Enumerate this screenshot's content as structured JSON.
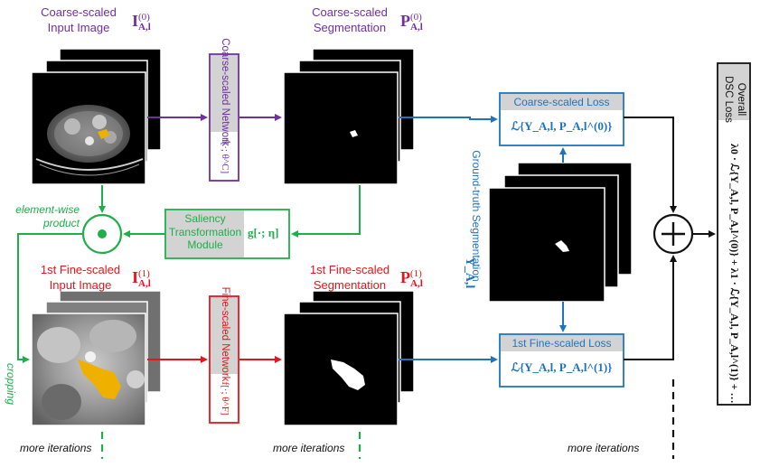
{
  "colors": {
    "coarse": "#7030a0",
    "saliency": "#1fae4a",
    "fine": "#e8141b",
    "loss": "#1f74c0",
    "output": "#111111",
    "label_bg": "#d3d3d3"
  },
  "coarse_image": {
    "label_line1": "Coarse-scaled",
    "label_line2": "Input Image",
    "symbol": "I",
    "sup": "(0)",
    "sub": "A,l"
  },
  "coarse_network": {
    "label": "Coarse-scaled Network",
    "func": "f[·; θ^C]"
  },
  "coarse_seg": {
    "label_line1": "Coarse-scaled",
    "label_line2": "Segmentation",
    "symbol": "P",
    "sup": "(0)",
    "sub": "A,l"
  },
  "coarse_loss": {
    "title": "Coarse-scaled Loss",
    "formula": "ℒ{Y_A,l, P_A,l^(0)}"
  },
  "ground_truth": {
    "label": "Ground-truth Segmentation",
    "symbol": "Y_A,l"
  },
  "element_wise": {
    "line1": "element-wise",
    "line2": "product"
  },
  "saliency": {
    "line1": "Saliency",
    "line2": "Transformation",
    "line3": "Module",
    "func": "g[·; η]"
  },
  "fine_image": {
    "label_line1": "1st Fine-scaled",
    "label_line2": "Input Image",
    "symbol": "I",
    "sup": "(1)",
    "sub": "A,l"
  },
  "fine_network": {
    "label": "Fine-scaled Network",
    "func": "f[·; θ^F]"
  },
  "fine_seg": {
    "label_line1": "1st Fine-scaled",
    "label_line2": "Segmentation",
    "symbol": "P",
    "sup": "(1)",
    "sub": "A,l"
  },
  "fine_loss": {
    "title": "1st Fine-scaled Loss",
    "formula": "ℒ{Y_A,l, P_A,l^(1)}"
  },
  "cropping": "cropping",
  "sum_symbol": "+",
  "overall": {
    "title": "Overall DSC Loss",
    "formula": "λ0 · ℒ{Y_A,l, P_A,l^(0)} + λ1 · ℒ{Y_A,l, P_A,l^(1)} + …"
  },
  "more_iterations": [
    "more iterations",
    "more iterations",
    "more iterations"
  ]
}
